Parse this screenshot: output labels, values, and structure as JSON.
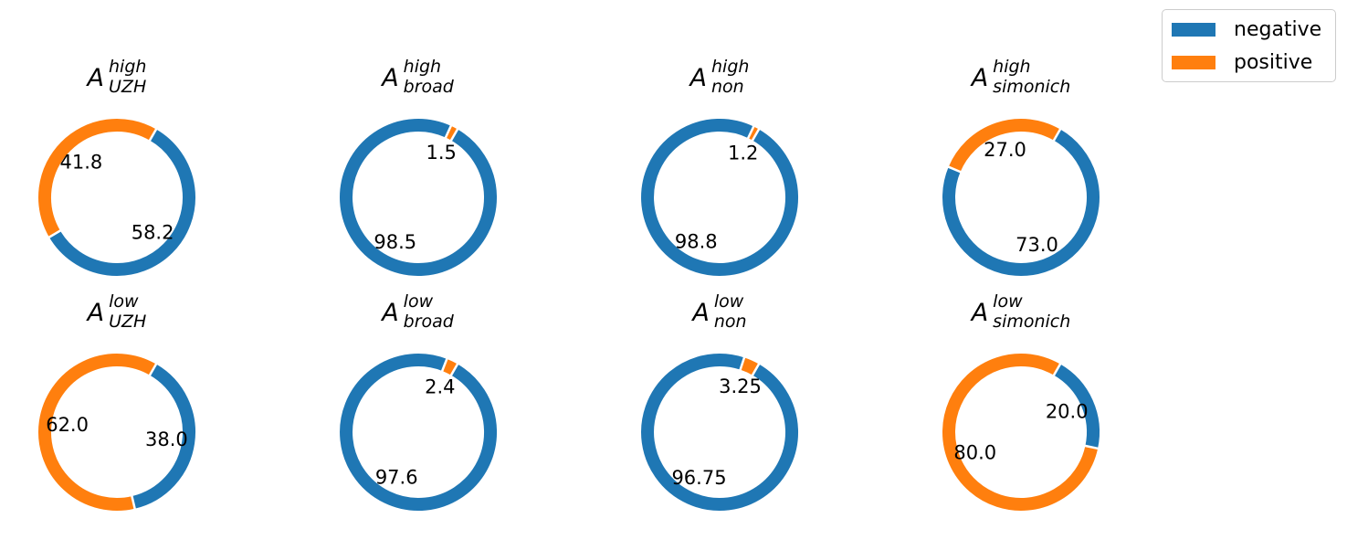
{
  "legend": {
    "entries": [
      {
        "label": "negative",
        "color": "#1f77b4"
      },
      {
        "label": "positive",
        "color": "#ff7f0e"
      }
    ],
    "placement": "top-right"
  },
  "chart_data": [
    {
      "type": "pie",
      "style": "donut",
      "title": {
        "base": "A",
        "sup": "high",
        "sub": "UZH"
      },
      "categories": [
        "negative",
        "positive"
      ],
      "values": [
        58.2,
        41.8
      ],
      "labels": [
        "58.2",
        "41.8"
      ]
    },
    {
      "type": "pie",
      "style": "donut",
      "title": {
        "base": "A",
        "sup": "high",
        "sub": "broad"
      },
      "categories": [
        "negative",
        "positive"
      ],
      "values": [
        98.5,
        1.5
      ],
      "labels": [
        "98.5",
        "1.5"
      ]
    },
    {
      "type": "pie",
      "style": "donut",
      "title": {
        "base": "A",
        "sup": "high",
        "sub": "non"
      },
      "categories": [
        "negative",
        "positive"
      ],
      "values": [
        98.8,
        1.2
      ],
      "labels": [
        "98.8",
        "1.2"
      ]
    },
    {
      "type": "pie",
      "style": "donut",
      "title": {
        "base": "A",
        "sup": "high",
        "sub": "simonich"
      },
      "categories": [
        "negative",
        "positive"
      ],
      "values": [
        73.0,
        27.0
      ],
      "labels": [
        "73.0",
        "27.0"
      ]
    },
    {
      "type": "pie",
      "style": "donut",
      "title": {
        "base": "A",
        "sup": "low",
        "sub": "UZH"
      },
      "categories": [
        "negative",
        "positive"
      ],
      "values": [
        38.0,
        62.0
      ],
      "labels": [
        "38.0",
        "62.0"
      ]
    },
    {
      "type": "pie",
      "style": "donut",
      "title": {
        "base": "A",
        "sup": "low",
        "sub": "broad"
      },
      "categories": [
        "negative",
        "positive"
      ],
      "values": [
        97.6,
        2.4
      ],
      "labels": [
        "97.6",
        "2.4"
      ]
    },
    {
      "type": "pie",
      "style": "donut",
      "title": {
        "base": "A",
        "sup": "low",
        "sub": "non"
      },
      "categories": [
        "negative",
        "positive"
      ],
      "values": [
        96.75,
        3.25
      ],
      "labels": [
        "96.75",
        "3.25"
      ]
    },
    {
      "type": "pie",
      "style": "donut",
      "title": {
        "base": "A",
        "sup": "low",
        "sub": "simonich"
      },
      "categories": [
        "negative",
        "positive"
      ],
      "values": [
        20.0,
        80.0
      ],
      "labels": [
        "20.0",
        "80.0"
      ]
    }
  ]
}
